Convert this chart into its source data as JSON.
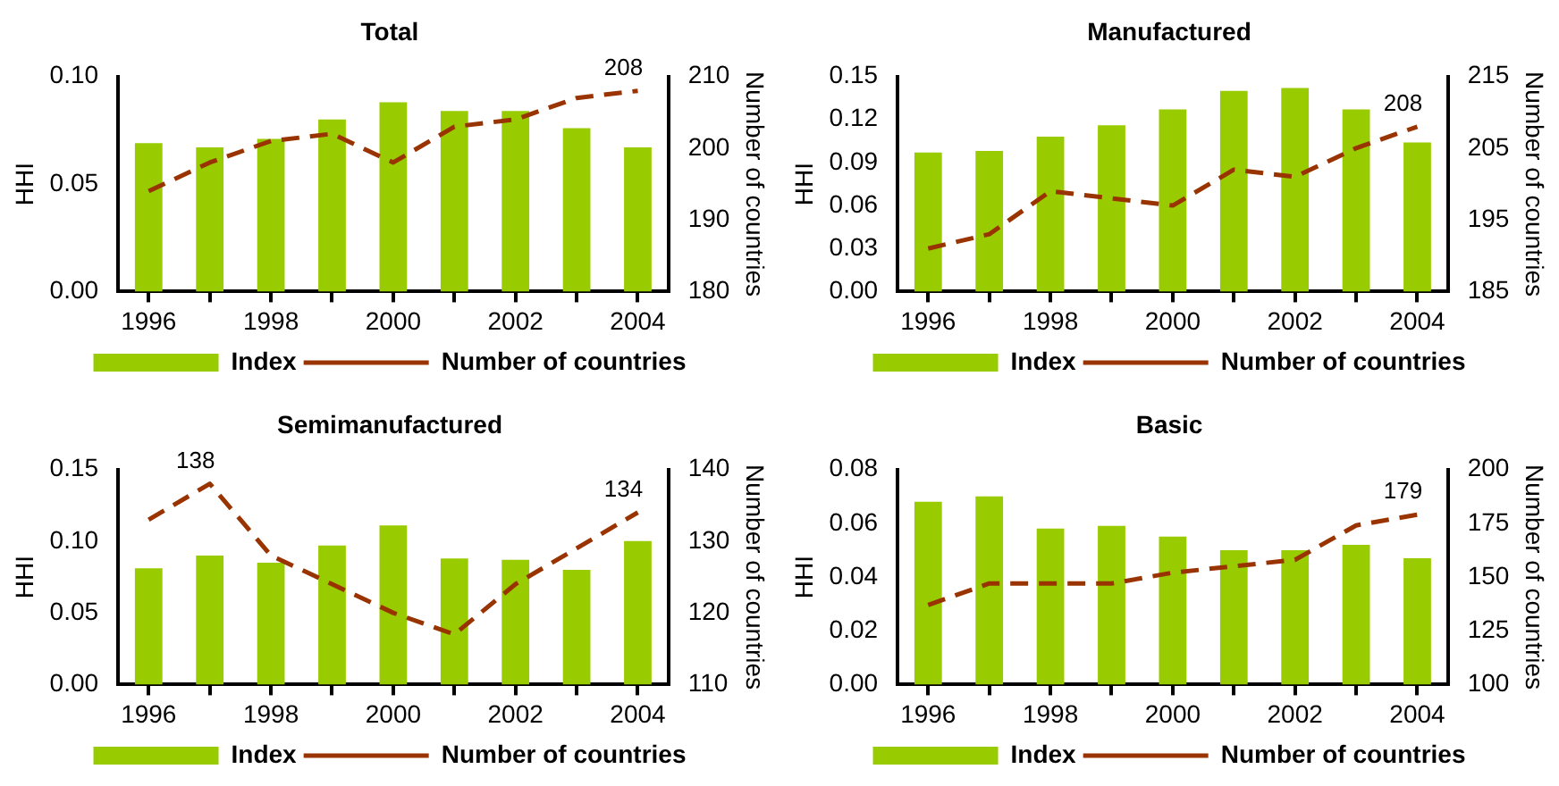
{
  "chart_data": [
    {
      "type": "bar",
      "title": "Total",
      "categories": [
        "1996",
        null,
        "1998",
        null,
        "2000",
        null,
        "2002",
        null,
        "2004"
      ],
      "ylabel": "HHI",
      "y2label": "Number of countries",
      "ylim": [
        0,
        0.1
      ],
      "yticks": [
        {
          "value": 0,
          "label": "0.00"
        },
        {
          "value": 0.05,
          "label": "0.05"
        },
        {
          "value": 0.1,
          "label": "0.10"
        }
      ],
      "y2lim": [
        180,
        210
      ],
      "y2ticks": [
        180,
        190,
        200,
        210
      ],
      "legend": "bottom",
      "series": [
        {
          "name": "Index",
          "color": "#99cc00",
          "values": [
            0.069,
            0.067,
            0.071,
            0.08,
            0.088,
            0.084,
            0.084,
            0.076,
            0.067
          ]
        },
        {
          "name": "Number of countries",
          "type": "line",
          "axis": "y2",
          "color": "#993300",
          "line_style": "dashed",
          "marker": "none",
          "values": [
            194,
            198,
            201,
            202,
            198,
            203,
            204,
            207,
            208
          ],
          "value_labels": [
            null,
            null,
            null,
            null,
            null,
            null,
            null,
            null,
            "208"
          ]
        }
      ]
    },
    {
      "type": "bar",
      "title": "Manufactured",
      "categories": [
        "1996",
        null,
        "1998",
        null,
        "2000",
        null,
        "2002",
        null,
        "2004"
      ],
      "ylabel": "HHI",
      "y2label": "Number of countries",
      "ylim": [
        0,
        0.15
      ],
      "yticks": [
        {
          "value": 0,
          "label": "0.00"
        },
        {
          "value": 0.03,
          "label": "0.03"
        },
        {
          "value": 0.06,
          "label": "0.06"
        },
        {
          "value": 0.09,
          "label": "0.09"
        },
        {
          "value": 0.12,
          "label": "0.12"
        },
        {
          "value": 0.15,
          "label": "0.15"
        }
      ],
      "y2lim": [
        185,
        215
      ],
      "y2ticks": [
        185,
        195,
        205,
        215
      ],
      "legend": "bottom",
      "series": [
        {
          "name": "Index",
          "color": "#99cc00",
          "values": [
            0.097,
            0.098,
            0.108,
            0.116,
            0.127,
            0.14,
            0.142,
            0.127,
            0.104
          ]
        },
        {
          "name": "Number of countries",
          "type": "line",
          "axis": "y2",
          "color": "#993300",
          "line_style": "dashed",
          "marker": "none",
          "values": [
            191,
            193,
            199,
            198,
            197,
            202,
            201,
            205,
            208
          ],
          "value_labels": [
            null,
            null,
            null,
            null,
            null,
            null,
            null,
            null,
            "208"
          ]
        }
      ]
    },
    {
      "type": "bar",
      "title": "Semimanufactured",
      "categories": [
        "1996",
        null,
        "1998",
        null,
        "2000",
        null,
        "2002",
        null,
        "2004"
      ],
      "ylabel": "HHI",
      "y2label": "Number of countries",
      "ylim": [
        0,
        0.15
      ],
      "yticks": [
        {
          "value": 0,
          "label": "0.00"
        },
        {
          "value": 0.05,
          "label": "0.05"
        },
        {
          "value": 0.1,
          "label": "0.10"
        },
        {
          "value": 0.15,
          "label": "0.15"
        }
      ],
      "y2lim": [
        110,
        140
      ],
      "y2ticks": [
        110,
        120,
        130,
        140
      ],
      "legend": "bottom",
      "series": [
        {
          "name": "Index",
          "color": "#99cc00",
          "values": [
            0.081,
            0.09,
            0.085,
            0.097,
            0.111,
            0.088,
            0.087,
            0.08,
            0.1
          ]
        },
        {
          "name": "Number of countries",
          "type": "line",
          "axis": "y2",
          "color": "#993300",
          "line_style": "dashed",
          "marker": "none",
          "values": [
            133,
            138,
            128,
            124,
            120,
            117,
            124,
            129,
            134
          ],
          "value_labels": [
            null,
            "138",
            null,
            null,
            null,
            null,
            null,
            null,
            "134"
          ]
        }
      ]
    },
    {
      "type": "bar",
      "title": "Basic",
      "categories": [
        "1996",
        null,
        "1998",
        null,
        "2000",
        null,
        "2002",
        null,
        "2004"
      ],
      "ylabel": "HHI",
      "y2label": "Number of countries",
      "ylim": [
        0,
        0.08
      ],
      "yticks": [
        {
          "value": 0,
          "label": "0.00"
        },
        {
          "value": 0.02,
          "label": "0.02"
        },
        {
          "value": 0.04,
          "label": "0.04"
        },
        {
          "value": 0.06,
          "label": "0.06"
        },
        {
          "value": 0.08,
          "label": "0.08"
        }
      ],
      "y2lim": [
        100,
        200
      ],
      "y2ticks": [
        100,
        125,
        150,
        175,
        200
      ],
      "legend": "bottom",
      "series": [
        {
          "name": "Index",
          "color": "#99cc00",
          "values": [
            0.068,
            0.07,
            0.058,
            0.059,
            0.055,
            0.05,
            0.05,
            0.052,
            0.047
          ]
        },
        {
          "name": "Number of countries",
          "type": "line",
          "axis": "y2",
          "color": "#993300",
          "line_style": "dashed",
          "marker": "none",
          "values": [
            137,
            147,
            147,
            147,
            152,
            155,
            158,
            174,
            179
          ],
          "value_labels": [
            null,
            null,
            null,
            null,
            null,
            null,
            null,
            null,
            "179"
          ]
        }
      ]
    }
  ]
}
